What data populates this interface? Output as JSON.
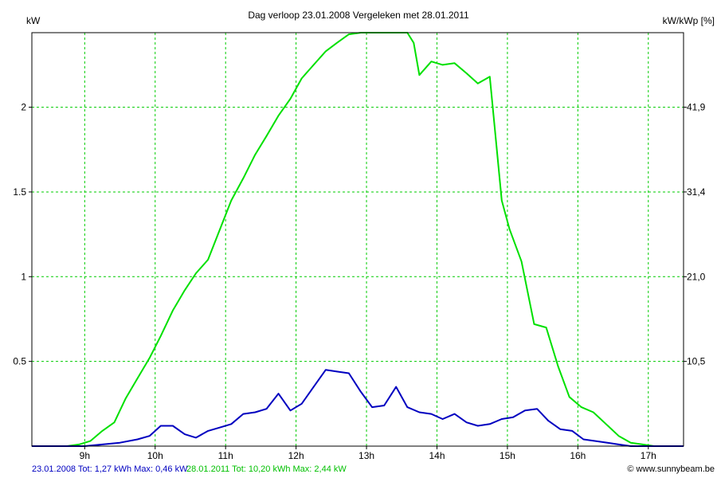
{
  "chart_data": {
    "type": "line",
    "title": "Dag  verloop 23.01.2008   Vergeleken met 28.01.2011",
    "ylabel_left": "kW",
    "ylabel_right": "kW/kWp [%]",
    "xlim_hours": [
      8.25,
      17.5
    ],
    "ylim": [
      0,
      2.44
    ],
    "x_ticks": [
      {
        "v": 9,
        "label": "9h"
      },
      {
        "v": 10,
        "label": "10h"
      },
      {
        "v": 11,
        "label": "11h"
      },
      {
        "v": 12,
        "label": "12h"
      },
      {
        "v": 13,
        "label": "13h"
      },
      {
        "v": 14,
        "label": "14h"
      },
      {
        "v": 15,
        "label": "15h"
      },
      {
        "v": 16,
        "label": "16h"
      },
      {
        "v": 17,
        "label": "17h"
      }
    ],
    "y_ticks_left": [
      {
        "v": 0.5,
        "label": "0.5"
      },
      {
        "v": 1,
        "label": "1"
      },
      {
        "v": 1.5,
        "label": "1.5"
      },
      {
        "v": 2,
        "label": "2"
      }
    ],
    "y_ticks_right": [
      {
        "v": 0.5,
        "label": "10,5"
      },
      {
        "v": 1,
        "label": "21,0"
      },
      {
        "v": 1.5,
        "label": "31,4"
      },
      {
        "v": 2,
        "label": "41,9"
      }
    ],
    "grid": true,
    "series": [
      {
        "name": "28.01.2011",
        "color": "#00e000",
        "x": [
          8.25,
          8.5,
          8.75,
          8.92,
          9.08,
          9.25,
          9.42,
          9.58,
          9.75,
          9.92,
          10.08,
          10.25,
          10.42,
          10.58,
          10.75,
          10.92,
          11.08,
          11.25,
          11.42,
          11.58,
          11.75,
          11.92,
          12.08,
          12.25,
          12.42,
          12.58,
          12.75,
          12.92,
          13.08,
          13.25,
          13.42,
          13.58,
          13.67,
          13.75,
          13.92,
          14.08,
          14.25,
          14.42,
          14.58,
          14.75,
          14.92,
          15.03,
          15.2,
          15.38,
          15.55,
          15.72,
          15.88,
          16.05,
          16.22,
          16.4,
          16.58,
          16.75,
          16.92,
          17.08,
          17.25,
          17.5
        ],
        "y": [
          0,
          0,
          0,
          0.01,
          0.03,
          0.09,
          0.14,
          0.28,
          0.4,
          0.52,
          0.65,
          0.8,
          0.92,
          1.02,
          1.1,
          1.28,
          1.45,
          1.58,
          1.72,
          1.83,
          1.95,
          2.05,
          2.17,
          2.25,
          2.33,
          2.38,
          2.43,
          2.44,
          2.44,
          2.44,
          2.44,
          2.44,
          2.38,
          2.19,
          2.27,
          2.25,
          2.26,
          2.2,
          2.14,
          2.18,
          1.45,
          1.28,
          1.09,
          0.72,
          0.7,
          0.47,
          0.29,
          0.23,
          0.2,
          0.13,
          0.06,
          0.02,
          0.01,
          0,
          0,
          0
        ]
      },
      {
        "name": "23.01.2008",
        "color": "#0000c0",
        "x": [
          8.25,
          8.75,
          9.0,
          9.25,
          9.5,
          9.75,
          9.92,
          10.08,
          10.25,
          10.42,
          10.58,
          10.75,
          10.92,
          11.08,
          11.25,
          11.42,
          11.58,
          11.75,
          11.92,
          12.08,
          12.25,
          12.42,
          12.58,
          12.75,
          12.92,
          13.08,
          13.25,
          13.42,
          13.58,
          13.75,
          13.92,
          14.08,
          14.25,
          14.42,
          14.58,
          14.75,
          14.92,
          15.08,
          15.25,
          15.42,
          15.58,
          15.75,
          15.92,
          16.08,
          16.25,
          16.42,
          16.58,
          16.75,
          17.0,
          17.5
        ],
        "y": [
          0,
          0,
          0,
          0.01,
          0.02,
          0.04,
          0.06,
          0.12,
          0.12,
          0.07,
          0.05,
          0.09,
          0.11,
          0.13,
          0.19,
          0.2,
          0.22,
          0.31,
          0.21,
          0.25,
          0.35,
          0.45,
          0.44,
          0.43,
          0.32,
          0.23,
          0.24,
          0.35,
          0.23,
          0.2,
          0.19,
          0.16,
          0.19,
          0.14,
          0.12,
          0.13,
          0.16,
          0.17,
          0.21,
          0.22,
          0.15,
          0.1,
          0.09,
          0.04,
          0.03,
          0.02,
          0.01,
          0,
          0,
          0
        ]
      }
    ],
    "footer": {
      "left": "23.01.2008 Tot: 1,27 kWh Max: 0,46 kW",
      "left_color": "#0000c0",
      "middle": "28.01.2011 Tot: 10,20 kWh Max: 2,44 kW",
      "middle_color": "#00c000",
      "right": "© www.sunnybeam.be"
    }
  }
}
